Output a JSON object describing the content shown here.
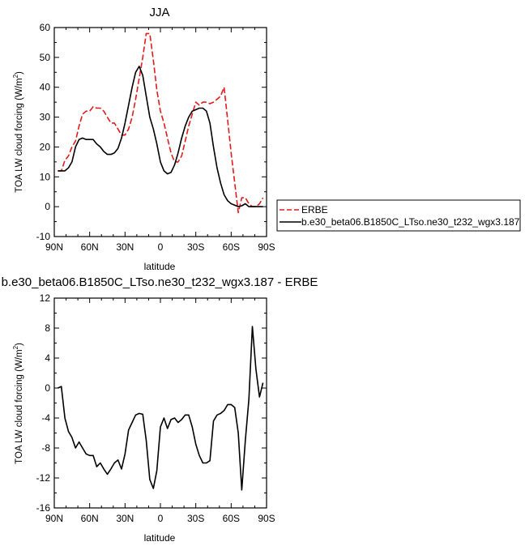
{
  "chart_data": [
    {
      "type": "line",
      "title": "JJA",
      "xlabel": "latitude",
      "ylabel": "TOA LW cloud forcing (W/m",
      "ylabel_sup": "2",
      "ylabel_close": ")",
      "xlim": [
        90,
        -90
      ],
      "ylim": [
        -10,
        60
      ],
      "xticks": [
        90,
        60,
        30,
        0,
        -30,
        -60,
        -90
      ],
      "xtick_labels": [
        "90N",
        "60N",
        "30N",
        "0",
        "30S",
        "60S",
        "90S"
      ],
      "yticks": [
        -10,
        0,
        10,
        20,
        30,
        40,
        50,
        60
      ],
      "ytick_labels": [
        "-10",
        "0",
        "10",
        "20",
        "30",
        "40",
        "50",
        "60"
      ],
      "legend": {
        "placement": "right"
      },
      "series": [
        {
          "name": "ERBE",
          "color": "#e31a1c",
          "dash": "dashed",
          "x": [
            87,
            84,
            81,
            78,
            75,
            72,
            69,
            66,
            63,
            60,
            57,
            54,
            51,
            48,
            45,
            42,
            39,
            36,
            33,
            30,
            27,
            24,
            21,
            18,
            15,
            12,
            9,
            6,
            3,
            0,
            -3,
            -6,
            -9,
            -12,
            -15,
            -18,
            -21,
            -24,
            -27,
            -30,
            -33,
            -36,
            -39,
            -42,
            -45,
            -48,
            -51,
            -54,
            -57,
            -60,
            -63,
            -66,
            -69,
            -72,
            -75,
            -78,
            -81,
            -84,
            -87
          ],
          "values": [
            12,
            12,
            15.5,
            17,
            20,
            22,
            27,
            31,
            32,
            32,
            33.5,
            33,
            33,
            32,
            30,
            28,
            28,
            26,
            24,
            24,
            26,
            30,
            36,
            43,
            50,
            58,
            58,
            49,
            39,
            32,
            28,
            23,
            18,
            15,
            15,
            17,
            22,
            27,
            31,
            35,
            34,
            35,
            35,
            34.5,
            35,
            36,
            37,
            40,
            29,
            18,
            8,
            -2,
            3,
            3,
            1,
            0,
            0,
            1,
            3
          ]
        },
        {
          "name": "b.e30_beta06.B1850C_LTso.ne30_t232_wgx3.187",
          "color": "#000000",
          "dash": "solid",
          "x": [
            87,
            84,
            81,
            78,
            75,
            72,
            69,
            66,
            63,
            60,
            57,
            54,
            51,
            48,
            45,
            42,
            39,
            36,
            33,
            30,
            27,
            24,
            21,
            18,
            15,
            12,
            9,
            6,
            3,
            0,
            -3,
            -6,
            -9,
            -12,
            -15,
            -18,
            -21,
            -24,
            -27,
            -30,
            -33,
            -36,
            -39,
            -42,
            -45,
            -48,
            -51,
            -54,
            -57,
            -60,
            -63,
            -66,
            -69,
            -72,
            -75,
            -78,
            -81,
            -84,
            -87
          ],
          "values": [
            12,
            12,
            12,
            13,
            15,
            20,
            22.5,
            23,
            22.5,
            22.5,
            22.5,
            21,
            20,
            18.5,
            17.5,
            17.5,
            18,
            19.5,
            23,
            28,
            34,
            40,
            45,
            47,
            44,
            37,
            30,
            26,
            21,
            15,
            12,
            11,
            11.5,
            14,
            18,
            23,
            27,
            30,
            32,
            32.5,
            33,
            33,
            32,
            28,
            20,
            13,
            8,
            4,
            2,
            1,
            0.5,
            0,
            0.3,
            1,
            0,
            0,
            0,
            0,
            0
          ]
        }
      ]
    },
    {
      "type": "line",
      "title": "b.e30_beta06.B1850C_LTso.ne30_t232_wgx3.187 - ERBE",
      "xlabel": "latitude",
      "ylabel": "TOA LW cloud forcing (W/m",
      "ylabel_sup": "2",
      "ylabel_close": ")",
      "xlim": [
        90,
        -90
      ],
      "ylim": [
        -16,
        12
      ],
      "xticks": [
        90,
        60,
        30,
        0,
        -30,
        -60,
        -90
      ],
      "xtick_labels": [
        "90N",
        "60N",
        "30N",
        "0",
        "30S",
        "60S",
        "90S"
      ],
      "yticks": [
        -16,
        -12,
        -8,
        -4,
        0,
        4,
        8,
        12
      ],
      "ytick_labels": [
        "-16",
        "-12",
        "-8",
        "-4",
        "0",
        "4",
        "8",
        "12"
      ],
      "series": [
        {
          "color": "#000000",
          "dash": "solid",
          "x": [
            87,
            84,
            81,
            78,
            75,
            72,
            69,
            66,
            63,
            60,
            57,
            54,
            51,
            48,
            45,
            42,
            39,
            36,
            33,
            30,
            27,
            24,
            21,
            18,
            15,
            12,
            9,
            6,
            3,
            0,
            -3,
            -6,
            -9,
            -12,
            -15,
            -18,
            -21,
            -24,
            -27,
            -30,
            -33,
            -36,
            -39,
            -42,
            -45,
            -48,
            -51,
            -54,
            -57,
            -60,
            -63,
            -66,
            -69,
            -72,
            -75,
            -78,
            -81,
            -84,
            -87
          ],
          "values": [
            0,
            0.2,
            -4,
            -5.8,
            -6.6,
            -8,
            -7.2,
            -8,
            -8.8,
            -9,
            -9,
            -10.5,
            -10,
            -10.8,
            -11.5,
            -10.8,
            -10,
            -9.6,
            -10.8,
            -8.8,
            -5.6,
            -4.6,
            -3.6,
            -3.4,
            -3.5,
            -7,
            -12.2,
            -13.4,
            -11,
            -5.2,
            -4,
            -5.4,
            -4.2,
            -4,
            -4.6,
            -4.2,
            -3.6,
            -3.6,
            -5.2,
            -7.5,
            -9,
            -10,
            -10,
            -9.7,
            -4.4,
            -3.6,
            -3.4,
            -3,
            -2.2,
            -2.2,
            -2.6,
            -6,
            -13.6,
            -7,
            -1.5,
            8.2,
            2.5,
            -1.2,
            0.7
          ]
        }
      ]
    }
  ]
}
